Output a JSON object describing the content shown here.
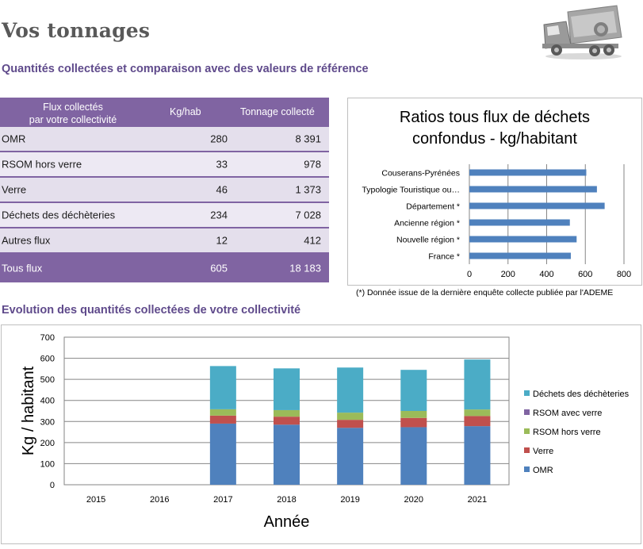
{
  "page": {
    "title": "Vos tonnages",
    "section1_title": "Quantités collectées et comparaison avec des valeurs de référence",
    "section2_title": "Evolution des quantités collectées de votre collectivité"
  },
  "table": {
    "header": {
      "col1_line1": "Flux collectés",
      "col1_line2": "par votre collectivité",
      "col2": "Kg/hab",
      "col3": "Tonnage collecté"
    },
    "rows": [
      {
        "label": "OMR",
        "kg_hab": "280",
        "tonnage": "8 391"
      },
      {
        "label": "RSOM hors verre",
        "kg_hab": "33",
        "tonnage": "978"
      },
      {
        "label": "Verre",
        "kg_hab": "46",
        "tonnage": "1 373"
      },
      {
        "label": "Déchets des déchèteries",
        "kg_hab": "234",
        "tonnage": "7 028"
      },
      {
        "label": "Autres flux",
        "kg_hab": "12",
        "tonnage": "412"
      }
    ],
    "total": {
      "label": "Tous flux",
      "kg_hab": "605",
      "tonnage": "18 183"
    },
    "colors": {
      "header": "#8064a2",
      "row_a": "#e4dfec",
      "row_b": "#ede9f3"
    }
  },
  "ratio_note": "(*) Donnée issue de la dernière enquête collecte publiée par l'ADEME",
  "chart_data": [
    {
      "type": "bar",
      "orientation": "horizontal",
      "title_line1": "Ratios tous flux de déchets",
      "title_line2": "confondus - kg/habitant",
      "categories": [
        "Couserans-Pyrénées",
        "Typologie Touristique ou…",
        "Département *",
        "Ancienne région *",
        "Nouvelle région *",
        "France *"
      ],
      "values": [
        605,
        660,
        700,
        520,
        555,
        525
      ],
      "xlim": [
        0,
        800
      ],
      "xticks": [
        "0",
        "200",
        "400",
        "600",
        "800"
      ],
      "grid": "vertical",
      "color": "#4f81bd"
    },
    {
      "type": "bar",
      "stacked": true,
      "categories": [
        "2015",
        "2016",
        "2017",
        "2018",
        "2019",
        "2020",
        "2021"
      ],
      "series": [
        {
          "name": "OMR",
          "values": [
            0,
            0,
            290,
            285,
            270,
            273,
            278
          ],
          "color": "#4f81bd"
        },
        {
          "name": "Verre",
          "values": [
            0,
            0,
            38,
            38,
            38,
            44,
            48
          ],
          "color": "#c0504d"
        },
        {
          "name": "RSOM hors verre",
          "values": [
            0,
            0,
            30,
            31,
            34,
            33,
            31
          ],
          "color": "#9bbb59"
        },
        {
          "name": "RSOM avec verre",
          "values": [
            0,
            0,
            0,
            0,
            0,
            0,
            0
          ],
          "color": "#8064a2"
        },
        {
          "name": "Déchets des déchèteries",
          "values": [
            0,
            0,
            205,
            198,
            214,
            195,
            237
          ],
          "color": "#4bacc6"
        }
      ],
      "legend_order": [
        "Déchets des déchèteries",
        "RSOM avec verre",
        "RSOM hors verre",
        "Verre",
        "OMR"
      ],
      "ylim": [
        0,
        700
      ],
      "yticks": [
        "0",
        "100",
        "200",
        "300",
        "400",
        "500",
        "600",
        "700"
      ],
      "xlabel": "Année",
      "ylabel": "Kg / habitant",
      "grid": "horizontal",
      "legend": "right"
    }
  ]
}
